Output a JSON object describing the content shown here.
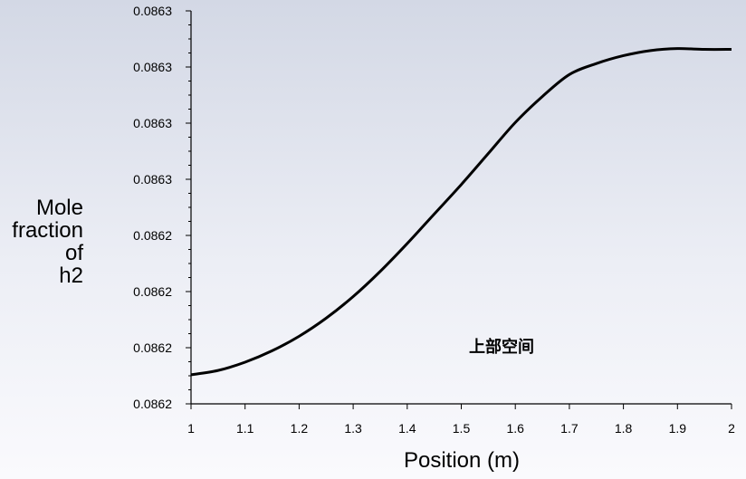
{
  "chart_data": {
    "type": "line",
    "title": "",
    "xlabel": "Position (m)",
    "ylabel_lines": [
      "Mole",
      "fraction",
      "of",
      "h2"
    ],
    "xlim": [
      1,
      2
    ],
    "x_ticks": [
      "1",
      "1.1",
      "1.2",
      "1.3",
      "1.4",
      "1.5",
      "1.6",
      "1.7",
      "1.8",
      "1.9",
      "2"
    ],
    "y_ticks": [
      "0.0862",
      "0.0862",
      "0.0862",
      "0.0862",
      "0.0863",
      "0.0863",
      "0.0863",
      "0.0863"
    ],
    "grid": false,
    "annotation": "上部空间",
    "series": [
      {
        "color": "#000000",
        "x": [
          1.0,
          1.05,
          1.1,
          1.15,
          1.2,
          1.25,
          1.3,
          1.35,
          1.4,
          1.45,
          1.5,
          1.55,
          1.6,
          1.65,
          1.7,
          1.75,
          1.8,
          1.85,
          1.9,
          1.95,
          2.0
        ],
        "y_rel": [
          0.074,
          0.085,
          0.106,
          0.135,
          0.172,
          0.218,
          0.273,
          0.337,
          0.408,
          0.483,
          0.558,
          0.637,
          0.716,
          0.782,
          0.838,
          0.866,
          0.886,
          0.899,
          0.904,
          0.902,
          0.902
        ]
      }
    ]
  }
}
